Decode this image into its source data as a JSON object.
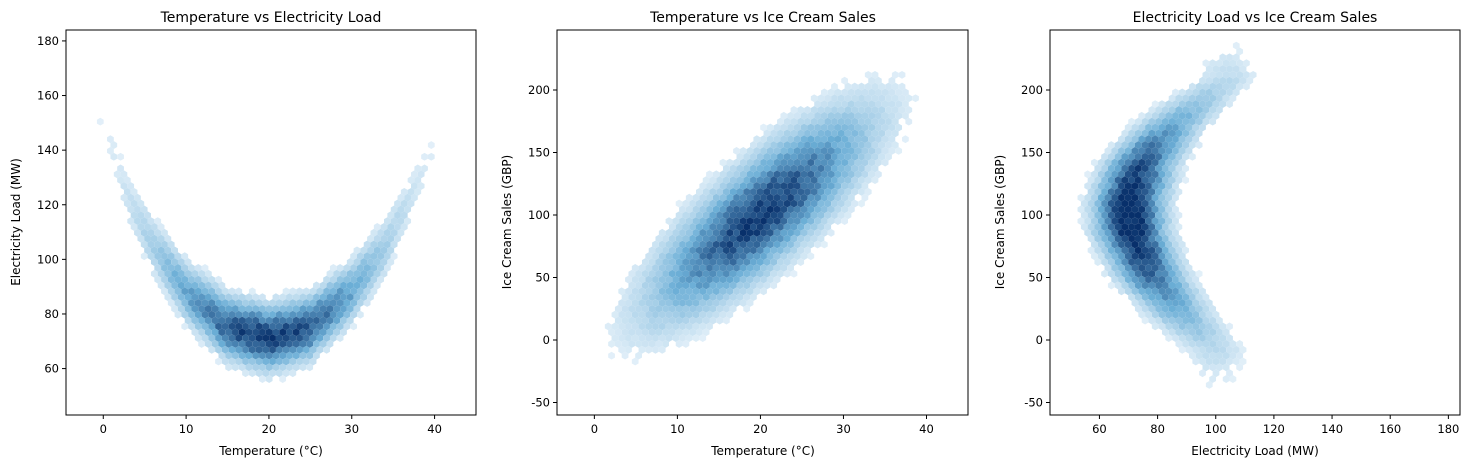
{
  "colors": {
    "low": "#f7fbff",
    "mid": "#6baed6",
    "high": "#08306b",
    "axis": "#000000"
  },
  "chart_data": [
    {
      "type": "hexbin",
      "title": "Temperature vs Electricity Load",
      "xlabel": "Temperature (°C)",
      "ylabel": "Electricity Load (MW)",
      "xlim": [
        -4.5,
        45
      ],
      "ylim": [
        43,
        184
      ],
      "xticks": [
        0,
        10,
        20,
        30,
        40
      ],
      "yticks": [
        60,
        80,
        100,
        120,
        140,
        160,
        180
      ],
      "density": {
        "shape": "parabola",
        "points": [
          [
            0,
            150
          ],
          [
            3,
            122
          ],
          [
            6,
            105
          ],
          [
            10,
            88
          ],
          [
            15,
            75
          ],
          [
            20,
            71
          ],
          [
            25,
            75
          ],
          [
            30,
            88
          ],
          [
            34,
            104
          ],
          [
            38,
            128
          ],
          [
            40,
            140
          ]
        ],
        "x_center": 20,
        "x_spread": 8,
        "y_spread": 6.5
      }
    },
    {
      "type": "hexbin",
      "title": "Temperature vs Ice Cream Sales",
      "xlabel": "Temperature (°C)",
      "ylabel": "Ice Cream Sales (GBP)",
      "xlim": [
        -4.5,
        45
      ],
      "ylim": [
        -60,
        248
      ],
      "xticks": [
        0,
        10,
        20,
        30,
        40
      ],
      "yticks": [
        -50,
        0,
        50,
        100,
        150,
        200
      ],
      "density": {
        "shape": "linear",
        "x_center": 20,
        "x_spread": 7.5,
        "slope": 5,
        "intercept": 0,
        "y_spread": 27
      }
    },
    {
      "type": "hexbin",
      "title": "Electricity Load vs Ice Cream Sales",
      "xlabel": "Electricity Load (MW)",
      "ylabel": "Ice Cream Sales (GBP)",
      "xlim": [
        43,
        184
      ],
      "ylim": [
        -60,
        248
      ],
      "xticks": [
        60,
        80,
        100,
        120,
        140,
        160,
        180
      ],
      "yticks": [
        -50,
        0,
        50,
        100,
        150,
        200
      ],
      "density": {
        "shape": "crescent",
        "points": [
          [
            100,
            -10
          ],
          [
            88,
            20
          ],
          [
            78,
            50
          ],
          [
            71,
            85
          ],
          [
            70,
            110
          ],
          [
            74,
            140
          ],
          [
            84,
            170
          ],
          [
            96,
            195
          ],
          [
            104,
            210
          ]
        ],
        "x_spread": 7,
        "y_spread": 22
      }
    }
  ]
}
